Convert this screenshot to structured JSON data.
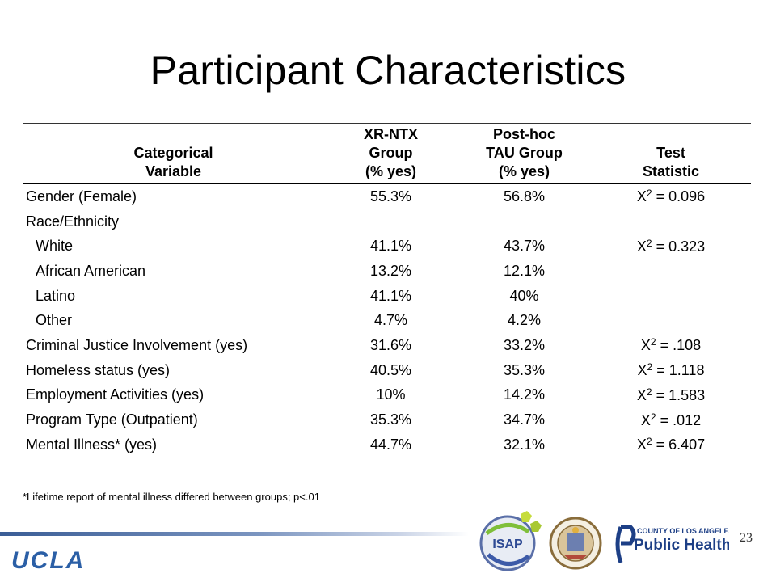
{
  "title": "Participant Characteristics",
  "table": {
    "headers": [
      [
        "Categorical",
        "Variable"
      ],
      [
        "XR-NTX",
        "Group",
        "(% yes)"
      ],
      [
        "Post-hoc",
        "TAU Group",
        "(% yes)"
      ],
      [
        "Test",
        "Statistic"
      ]
    ],
    "rows": [
      {
        "label": "Gender (Female)",
        "xr": "55.3%",
        "tau": "56.8%",
        "stat_prefix": "X",
        "stat_sup": "2",
        "stat_value": " = 0.096"
      },
      {
        "label": "Race/Ethnicity",
        "xr": "",
        "tau": "",
        "stat_prefix": "",
        "stat_sup": "",
        "stat_value": ""
      },
      {
        "label": "White",
        "xr": "41.1%",
        "tau": "43.7%",
        "stat_prefix": "X",
        "stat_sup": "2",
        "stat_value": " = 0.323"
      },
      {
        "label": "African American",
        "xr": "13.2%",
        "tau": "12.1%",
        "stat_prefix": "",
        "stat_sup": "",
        "stat_value": ""
      },
      {
        "label": "Latino",
        "xr": "41.1%",
        "tau": "40%",
        "stat_prefix": "",
        "stat_sup": "",
        "stat_value": ""
      },
      {
        "label": "Other",
        "xr": "4.7%",
        "tau": "4.2%",
        "stat_prefix": "",
        "stat_sup": "",
        "stat_value": ""
      },
      {
        "label": "Criminal Justice Involvement (yes)",
        "xr": "31.6%",
        "tau": "33.2%",
        "stat_prefix": "X",
        "stat_sup": "2",
        "stat_value": " = .108"
      },
      {
        "label": "Homeless status (yes)",
        "xr": "40.5%",
        "tau": "35.3%",
        "stat_prefix": "X",
        "stat_sup": "2",
        "stat_value": " = 1.118"
      },
      {
        "label": "Employment Activities (yes)",
        "xr": "10%",
        "tau": "14.2%",
        "stat_prefix": "X",
        "stat_sup": "2",
        "stat_value": " = 1.583"
      },
      {
        "label": "Program Type (Outpatient)",
        "xr": "35.3%",
        "tau": "34.7%",
        "stat_prefix": "X",
        "stat_sup": "2",
        "stat_value": " = .012"
      },
      {
        "label": "Mental Illness* (yes)",
        "xr": "44.7%",
        "tau": "32.1%",
        "stat_prefix": "X",
        "stat_sup": "2",
        "stat_value": " = 6.407"
      }
    ]
  },
  "footnote": "*Lifetime report of mental illness differed between groups; p<.01",
  "branding": {
    "ucla": "UCLA",
    "isap": "ISAP",
    "county": "COUNTY OF LOS ANGELES",
    "public_health": "Public Health",
    "accent": "#2b5fa6"
  },
  "page_number": "23"
}
